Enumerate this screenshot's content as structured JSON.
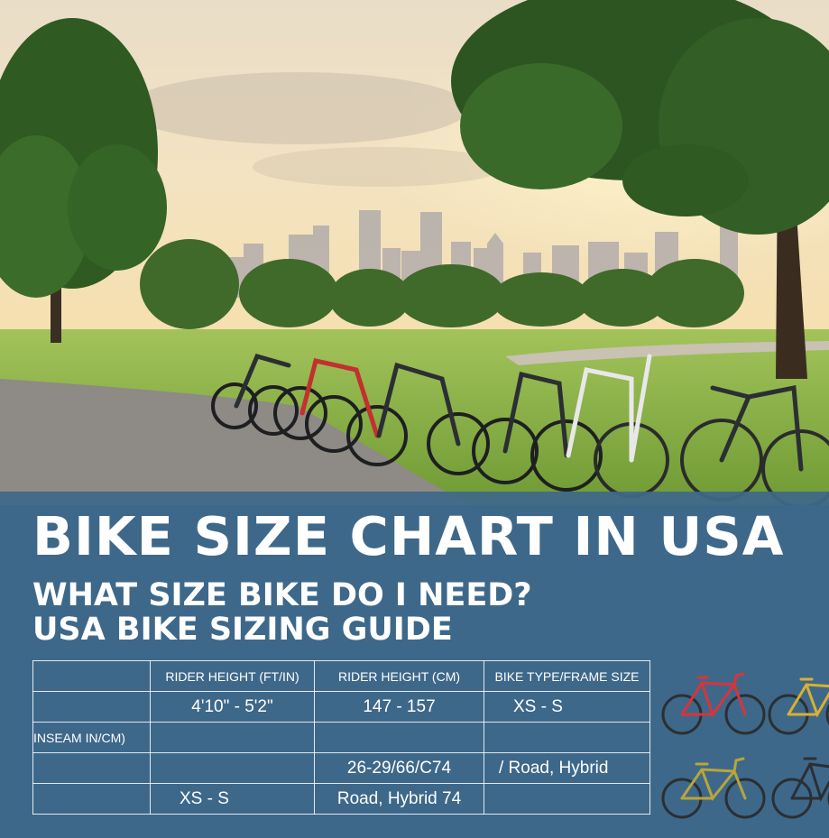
{
  "banner": {
    "title": "BIKE SIZE CHART IN USA",
    "subtitle_line1": "WHAT SIZE BIKE DO I NEED?",
    "subtitle_line2": "USA BIKE SIZING GUIDE"
  },
  "table": {
    "headers": [
      "",
      "RIDER HEIGHT (FT/IN)",
      "RIDER HEIGHT (CM)",
      "BIKE TYPE/FRAME SIZE"
    ],
    "rows": [
      [
        "",
        "4'10\" - 5'2\"",
        "147 - 157",
        "XS - S"
      ],
      [
        "INSEAM IN/CM)",
        "",
        "",
        ""
      ],
      [
        "",
        "",
        "26-29/66/C74",
        "/ Road, Hybrid"
      ],
      [
        "",
        "XS - S",
        "Road, Hybrid 74",
        ""
      ]
    ]
  },
  "colors": {
    "panel": "#3e688a",
    "text": "#ffffff",
    "bike_red": "#d8343a",
    "bike_yellow": "#d9b032",
    "bike_dark": "#2b2f33"
  }
}
